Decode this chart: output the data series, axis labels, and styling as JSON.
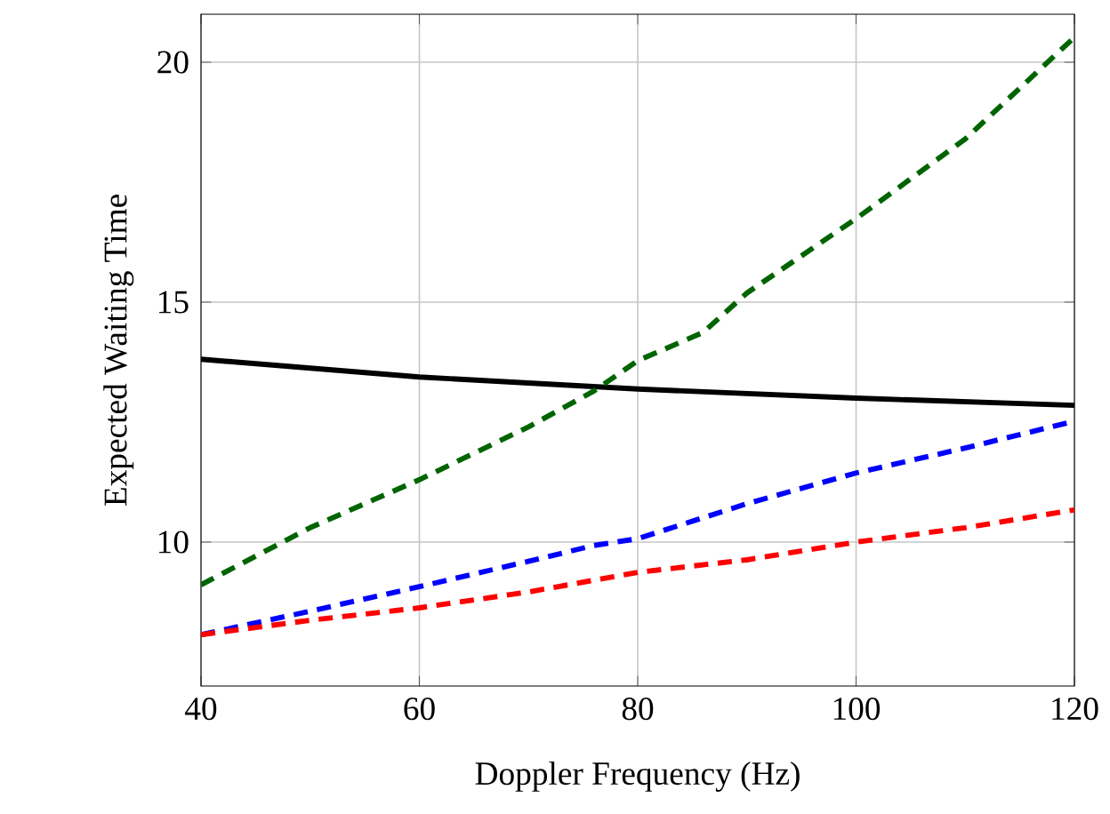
{
  "chart_data": {
    "type": "line",
    "xlabel": "Doppler Frequency (Hz)",
    "ylabel": "Expected Waiting Time",
    "xlim": [
      40,
      120
    ],
    "ylim": [
      7,
      21
    ],
    "xticks": [
      40,
      60,
      80,
      100,
      120
    ],
    "yticks": [
      10,
      15,
      20
    ],
    "grid": true,
    "series": [
      {
        "color": "#000000",
        "line_style": "solid",
        "x": [
          40,
          60,
          80,
          100,
          120
        ],
        "values": [
          13.81,
          13.44,
          13.19,
          13.0,
          12.85
        ]
      },
      {
        "color": "#006400",
        "line_style": "dashed",
        "x": [
          40,
          50,
          60,
          70,
          76,
          80,
          86,
          90,
          100,
          110,
          120
        ],
        "values": [
          9.11,
          10.3,
          11.3,
          12.4,
          13.15,
          13.78,
          14.37,
          15.19,
          16.74,
          18.4,
          20.52
        ]
      },
      {
        "color": "#0000ff",
        "line_style": "dashed",
        "x": [
          40,
          50,
          60,
          70,
          76,
          80,
          90,
          100,
          110,
          120
        ],
        "values": [
          8.07,
          8.56,
          9.07,
          9.6,
          9.93,
          10.07,
          10.8,
          11.44,
          11.96,
          12.52
        ]
      },
      {
        "color": "#ff0000",
        "line_style": "dashed",
        "x": [
          40,
          50,
          60,
          70,
          80,
          90,
          100,
          110,
          120
        ],
        "values": [
          8.07,
          8.37,
          8.63,
          8.96,
          9.37,
          9.63,
          10.0,
          10.3,
          10.67
        ]
      }
    ]
  }
}
